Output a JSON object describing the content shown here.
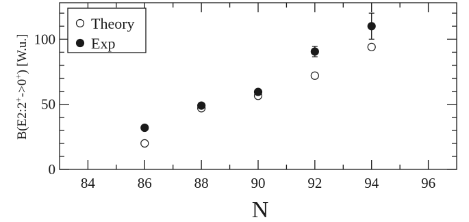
{
  "chart_data": {
    "type": "scatter",
    "title": "",
    "xlabel": "N",
    "ylabel_parts": [
      "B(E2:2",
      "+",
      "->0",
      "+",
      ") [W.u.]"
    ],
    "xlim": [
      83,
      97
    ],
    "ylim": [
      0,
      128
    ],
    "x_ticks_major": [
      84,
      86,
      88,
      90,
      92,
      94,
      96
    ],
    "x_tick_labels": [
      "84",
      "86",
      "88",
      "90",
      "92",
      "94",
      "96"
    ],
    "x_ticks_minor": [
      85,
      87,
      89,
      91,
      93,
      95
    ],
    "y_ticks_major": [
      0,
      50,
      100
    ],
    "y_tick_labels": [
      "0",
      "50",
      "100"
    ],
    "y_ticks_minor": [
      10,
      20,
      30,
      40,
      60,
      70,
      80,
      90,
      110,
      120
    ],
    "grid": false,
    "legend_position": "top-left",
    "series": [
      {
        "name": "Theory",
        "marker": "open-circle",
        "x": [
          86,
          88,
          90,
          92,
          94
        ],
        "y": [
          20,
          47,
          56.5,
          72,
          94
        ]
      },
      {
        "name": "Exp",
        "marker": "filled-circle",
        "x": [
          86,
          88,
          90,
          92,
          94
        ],
        "y": [
          32,
          49,
          59.5,
          90.5,
          110
        ],
        "error": [
          0,
          0,
          0,
          4,
          10
        ]
      }
    ]
  }
}
